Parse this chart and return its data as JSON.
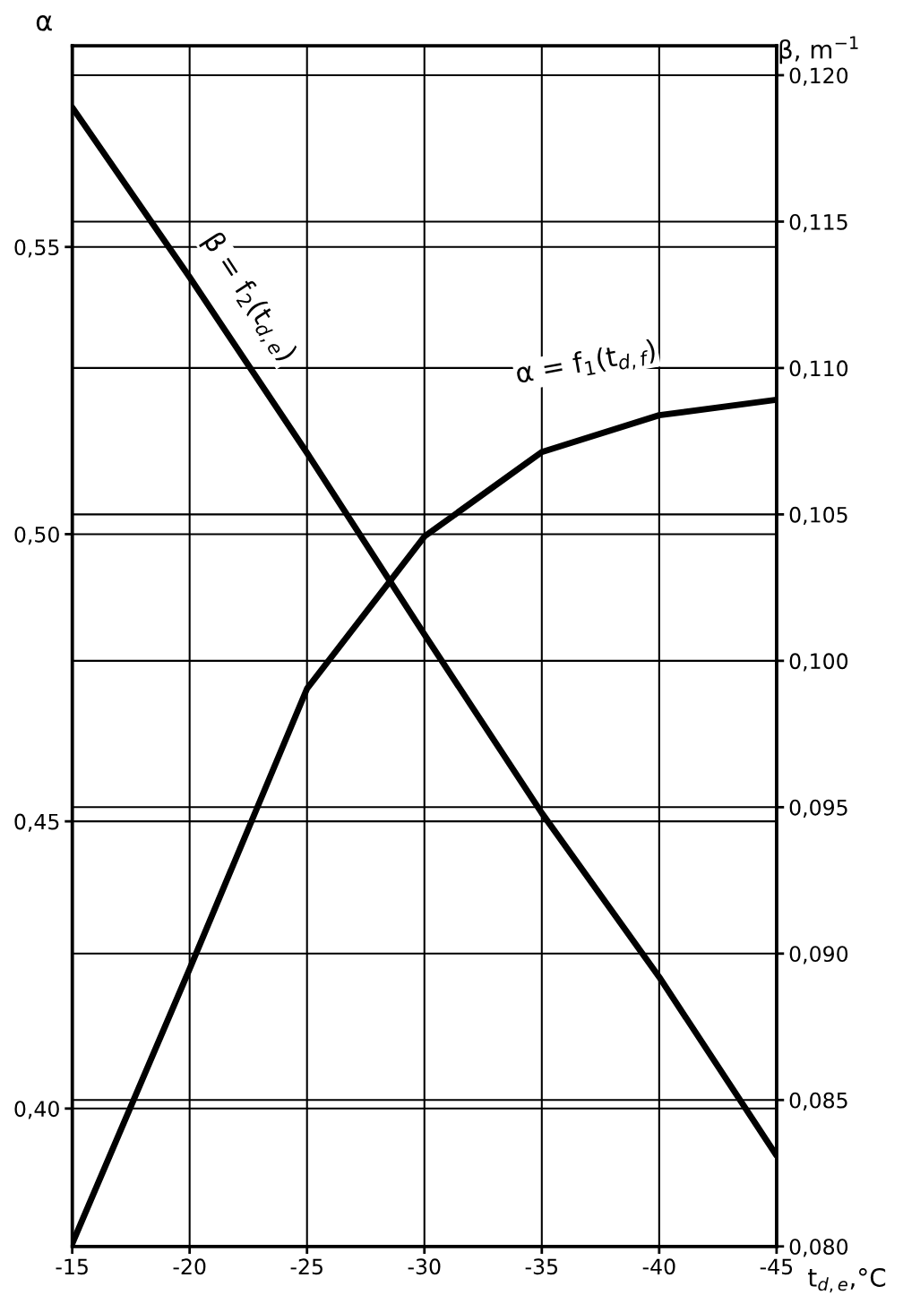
{
  "chart_data": {
    "type": "line",
    "xlabel": "t$_{d,e}$,°C",
    "ylabel": "α",
    "y2label": "β, m$^{−1}$",
    "x": [
      -15,
      -20,
      -25,
      -30,
      -35,
      -40,
      -45
    ],
    "series": [
      {
        "color": "#000000",
        "values": [
          0.3765,
          0.4243,
          0.4731,
          0.4996,
          0.5143,
          0.5207,
          0.5234
        ]
      },
      {
        "color": "#000000",
        "axis": "y2",
        "values": [
          0.1189,
          0.1131,
          0.1071,
          0.1009,
          0.0948,
          0.0892,
          0.0831
        ]
      }
    ],
    "xlim": [
      -15,
      -45
    ],
    "xticks": [
      -15,
      -20,
      -25,
      -30,
      -35,
      -40,
      -45
    ],
    "ylim": [
      0.376,
      0.585
    ],
    "yticks": [
      {
        "value": 0.4,
        "label": "0,40"
      },
      {
        "value": 0.45,
        "label": "0,45"
      },
      {
        "value": 0.5,
        "label": "0,50"
      },
      {
        "value": 0.55,
        "label": "0,55"
      }
    ],
    "y2lim": [
      0.08,
      0.121
    ],
    "y2ticks": [
      {
        "value": 0.08,
        "label": "0,080"
      },
      {
        "value": 0.085,
        "label": "0,085"
      },
      {
        "value": 0.09,
        "label": "0,090"
      },
      {
        "value": 0.095,
        "label": "0,095"
      },
      {
        "value": 0.1,
        "label": "0,100"
      },
      {
        "value": 0.105,
        "label": "0,105"
      },
      {
        "value": 0.11,
        "label": "0,110"
      },
      {
        "value": 0.115,
        "label": "0,115"
      },
      {
        "value": 0.12,
        "label": "0,120"
      }
    ],
    "annotations": [
      "β = f$_{2}$(t$_{d,e}$)",
      "α = f$_{1}$(t$_{d,f}$)"
    ],
    "grid": true,
    "marker": "none",
    "line_style": "solid",
    "legend": false
  }
}
